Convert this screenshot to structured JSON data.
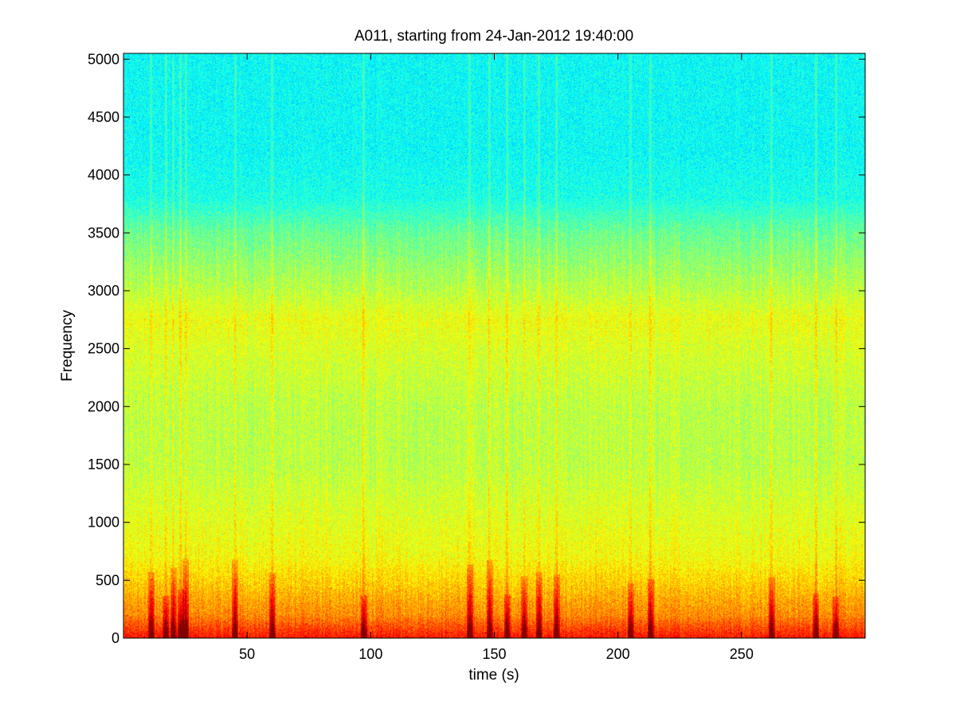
{
  "chart_data": {
    "type": "heatmap",
    "title": "A011, starting from 24-Jan-2012 19:40:00",
    "xlabel": "time (s)",
    "ylabel": "Frequency",
    "xlim": [
      0,
      300
    ],
    "ylim": [
      0,
      5050
    ],
    "x_ticks": [
      50,
      100,
      150,
      200,
      250
    ],
    "y_ticks": [
      0,
      500,
      1000,
      1500,
      2000,
      2500,
      3000,
      3500,
      4000,
      4500,
      5000
    ],
    "colormap": "jet",
    "grid": false,
    "legend": "none",
    "intensity_profile": {
      "description": "relative spectral power (0=low/blue, 1=high/red) by frequency band",
      "frequency": [
        0,
        100,
        200,
        300,
        450,
        700,
        1000,
        1500,
        2000,
        2500,
        2750,
        3000,
        3500,
        3800,
        4200,
        5050
      ],
      "level": [
        0.86,
        0.8,
        0.74,
        0.72,
        0.68,
        0.62,
        0.6,
        0.56,
        0.56,
        0.59,
        0.61,
        0.56,
        0.48,
        0.4,
        0.38,
        0.38
      ]
    },
    "transient_events_time_s": [
      11,
      17,
      20,
      23,
      25,
      45,
      60,
      97,
      140,
      148,
      155,
      162,
      168,
      175,
      205,
      213,
      262,
      280,
      288
    ]
  }
}
